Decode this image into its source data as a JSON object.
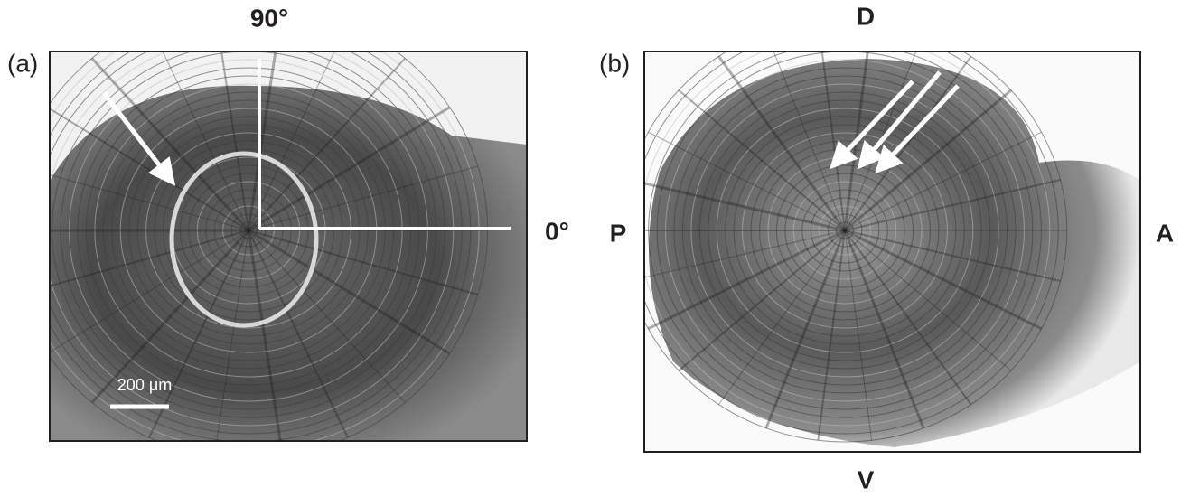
{
  "panels": [
    {
      "label": "(a)",
      "angle_top": "90°",
      "angle_right": "0°",
      "scale_bar": "200 μm"
    },
    {
      "label": "(b)",
      "orientation": {
        "top": "D",
        "left": "P",
        "right": "A",
        "bottom": "V"
      }
    }
  ]
}
